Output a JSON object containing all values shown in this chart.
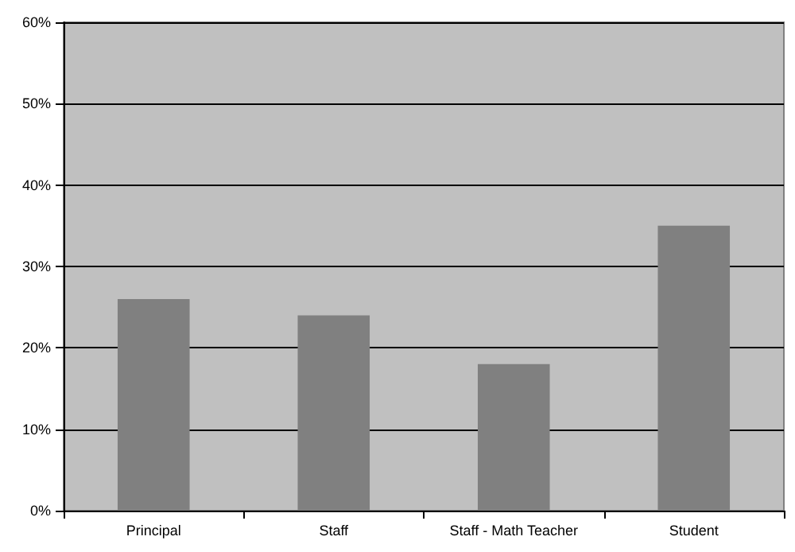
{
  "chart_data": {
    "type": "bar",
    "categories": [
      "Principal",
      "Staff",
      "Staff - Math Teacher",
      "Student"
    ],
    "values": [
      26,
      24,
      18,
      35
    ],
    "color": "#808080",
    "ylim": [
      0,
      60
    ],
    "yticks": [
      {
        "value": 0,
        "label": "0%"
      },
      {
        "value": 10,
        "label": "10%"
      },
      {
        "value": 20,
        "label": "20%"
      },
      {
        "value": 30,
        "label": "30%"
      },
      {
        "value": 40,
        "label": "40%"
      },
      {
        "value": 50,
        "label": "50%"
      },
      {
        "value": 60,
        "label": "60%"
      }
    ],
    "grid": "y"
  }
}
